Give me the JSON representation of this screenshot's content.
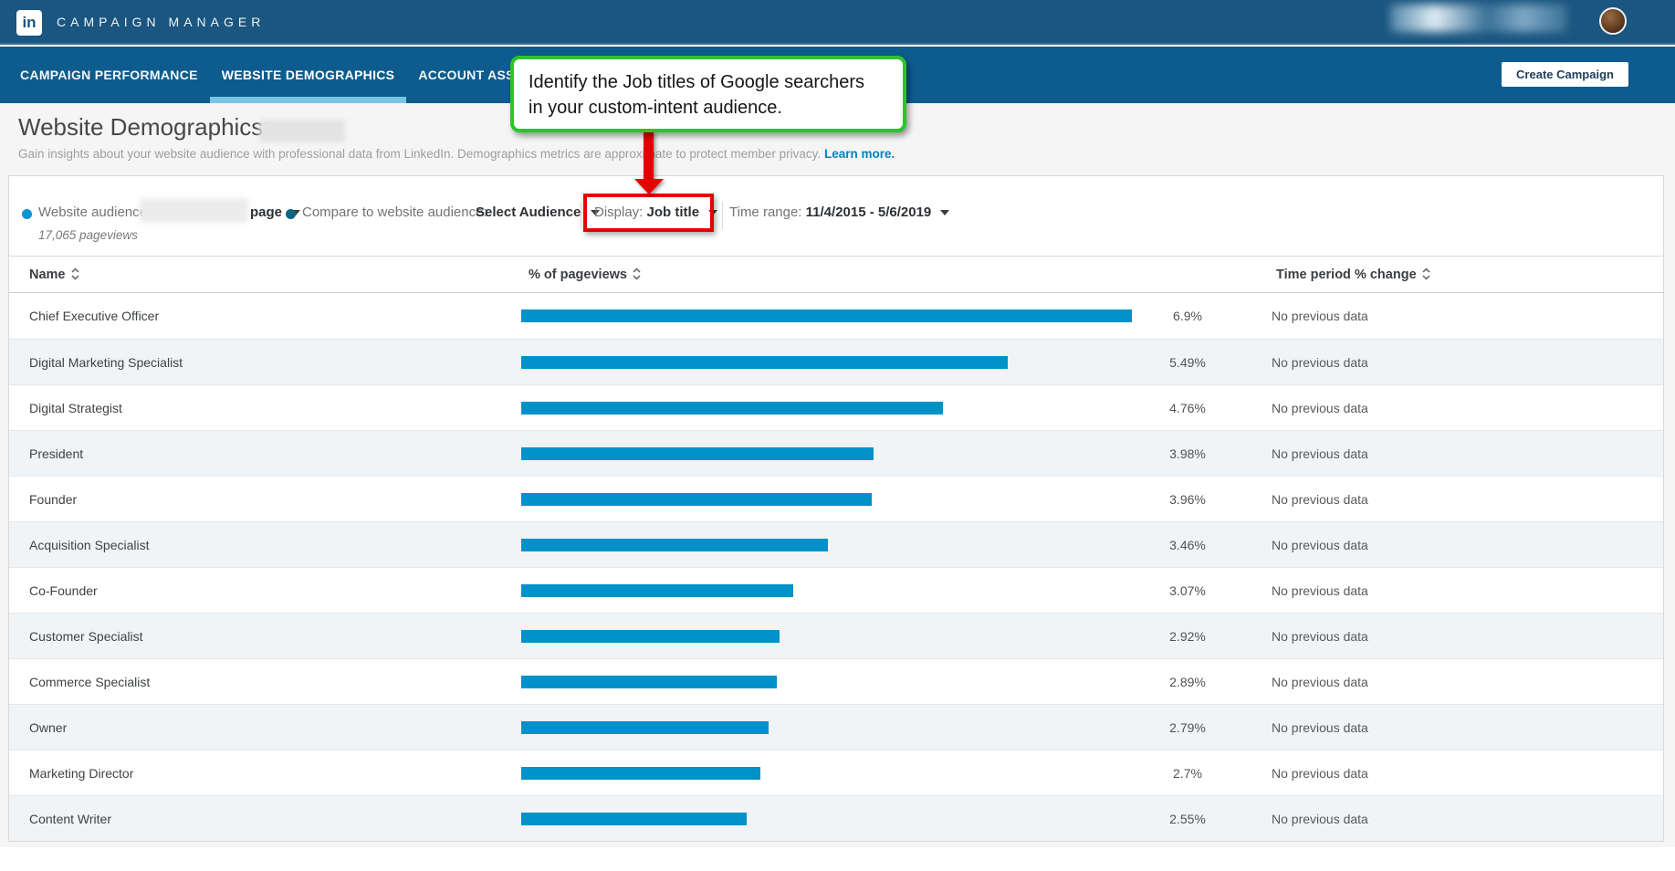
{
  "header": {
    "logo": "in",
    "brand": "CAMPAIGN MANAGER"
  },
  "nav": {
    "tabs": [
      {
        "label": "CAMPAIGN PERFORMANCE",
        "active": false
      },
      {
        "label": "WEBSITE DEMOGRAPHICS",
        "active": true
      },
      {
        "label": "ACCOUNT ASSETS",
        "active": false,
        "has_dropdown": true
      }
    ],
    "create_button": "Create Campaign"
  },
  "callout": {
    "line1": "Identify the Job titles of Google searchers",
    "line2": "in your custom-intent audience."
  },
  "page": {
    "title": "Website Demographics:",
    "description": "Gain insights about your website audience with professional data from LinkedIn. Demographics metrics are approximate to protect member privacy.",
    "learn_more": "Learn more."
  },
  "filters": {
    "website_audience_label": "Website audience:",
    "website_audience_value_suffix": "page",
    "pageviews": "17,065 pageviews",
    "compare_label": "Compare to website audience:",
    "compare_value": "Select Audience",
    "display_label": "Display:",
    "display_value": "Job title",
    "time_range_label": "Time range:",
    "time_range_value": "11/4/2015 - 5/6/2019"
  },
  "table": {
    "headers": {
      "name": "Name",
      "pageviews": "% of pageviews",
      "change": "Time period % change"
    },
    "rows": [
      {
        "name": "Chief Executive Officer",
        "pct": 6.9,
        "pct_label": "6.9%",
        "change": "No previous data"
      },
      {
        "name": "Digital Marketing Specialist",
        "pct": 5.49,
        "pct_label": "5.49%",
        "change": "No previous data"
      },
      {
        "name": "Digital Strategist",
        "pct": 4.76,
        "pct_label": "4.76%",
        "change": "No previous data"
      },
      {
        "name": "President",
        "pct": 3.98,
        "pct_label": "3.98%",
        "change": "No previous data"
      },
      {
        "name": "Founder",
        "pct": 3.96,
        "pct_label": "3.96%",
        "change": "No previous data"
      },
      {
        "name": "Acquisition Specialist",
        "pct": 3.46,
        "pct_label": "3.46%",
        "change": "No previous data"
      },
      {
        "name": "Co-Founder",
        "pct": 3.07,
        "pct_label": "3.07%",
        "change": "No previous data"
      },
      {
        "name": "Customer Specialist",
        "pct": 2.92,
        "pct_label": "2.92%",
        "change": "No previous data"
      },
      {
        "name": "Commerce Specialist",
        "pct": 2.89,
        "pct_label": "2.89%",
        "change": "No previous data"
      },
      {
        "name": "Owner",
        "pct": 2.79,
        "pct_label": "2.79%",
        "change": "No previous data"
      },
      {
        "name": "Marketing Director",
        "pct": 2.7,
        "pct_label": "2.7%",
        "change": "No previous data"
      },
      {
        "name": "Content Writer",
        "pct": 2.55,
        "pct_label": "2.55%",
        "change": "No previous data"
      }
    ]
  },
  "colors": {
    "bar": "#0091c9",
    "topbar": "#1a567f",
    "navbar": "#0e5c8e",
    "active_tab_underline": "#79c4e4",
    "callout_border": "#2bc42b",
    "annotation_red": "#e60000",
    "link": "#0084bf"
  }
}
